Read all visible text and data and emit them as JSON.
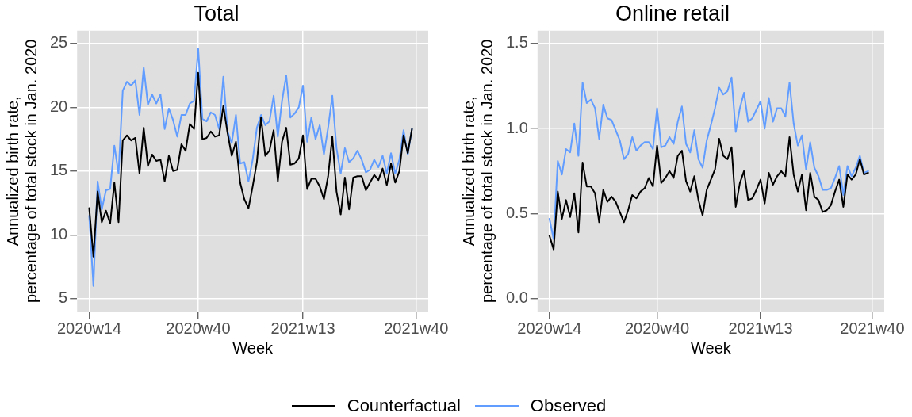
{
  "chart_data": [
    {
      "type": "line",
      "title": "Total",
      "xlabel": "Week",
      "ylabel": "Annualized birth rate,\npercentage of total stock in Jan. 2020",
      "categories": [
        "2020w14",
        null,
        null,
        null,
        null,
        null,
        null,
        null,
        null,
        null,
        null,
        null,
        null,
        null,
        null,
        null,
        null,
        null,
        null,
        null,
        null,
        null,
        null,
        null,
        null,
        null,
        "2020w40",
        null,
        null,
        null,
        null,
        null,
        null,
        null,
        null,
        null,
        null,
        null,
        null,
        null,
        null,
        null,
        null,
        null,
        null,
        null,
        null,
        null,
        null,
        null,
        null,
        "2021w13",
        null,
        null,
        null,
        null,
        null,
        null,
        null,
        null,
        null,
        null,
        null,
        null,
        null,
        null,
        null,
        null,
        null,
        null,
        null,
        null,
        null,
        null,
        null,
        null,
        null,
        null,
        "2021w40"
      ],
      "series": [
        {
          "name": "Counterfactual",
          "color": "#000000",
          "values": [
            12.1,
            8.3,
            13.4,
            11.0,
            11.9,
            10.9,
            14.1,
            11.0,
            17.4,
            17.8,
            17.4,
            17.6,
            14.8,
            18.4,
            15.4,
            16.3,
            15.8,
            15.9,
            14.2,
            16.2,
            15.0,
            15.1,
            17.1,
            16.6,
            18.7,
            18.3,
            22.7,
            17.5,
            17.6,
            18.1,
            17.7,
            17.8,
            20.1,
            18.0,
            16.2,
            17.3,
            14.1,
            12.8,
            12.1,
            13.8,
            15.7,
            19.2,
            16.2,
            16.6,
            18.2,
            14.2,
            17.3,
            18.4,
            15.5,
            15.6,
            16.0,
            17.8,
            13.6,
            14.4,
            14.4,
            13.8,
            12.8,
            14.6,
            17.7,
            13.4,
            11.6,
            14.5,
            12.0,
            14.5,
            14.6,
            14.6,
            13.5,
            14.1,
            14.7,
            14.3,
            15.2,
            13.9,
            15.6,
            14.1,
            15.0,
            17.8,
            16.4,
            18.3,
            null
          ]
        },
        {
          "name": "Observed",
          "color": "#619cff",
          "values": [
            11.5,
            6.0,
            14.2,
            12.0,
            13.5,
            13.6,
            17.0,
            14.8,
            21.3,
            22.0,
            21.7,
            22.1,
            19.4,
            23.1,
            20.2,
            21.0,
            20.3,
            21.0,
            18.3,
            19.9,
            19.0,
            17.7,
            19.4,
            19.4,
            20.3,
            20.5,
            24.6,
            19.1,
            18.9,
            19.6,
            19.4,
            18.3,
            22.4,
            18.1,
            17.2,
            19.4,
            15.6,
            15.7,
            14.2,
            15.9,
            18.4,
            19.4,
            18.6,
            18.9,
            20.9,
            17.7,
            20.5,
            22.5,
            19.2,
            19.5,
            20.0,
            21.7,
            17.3,
            19.2,
            17.5,
            18.6,
            16.3,
            18.4,
            20.9,
            16.8,
            14.8,
            16.8,
            15.7,
            16.0,
            16.6,
            15.9,
            14.9,
            15.1,
            15.9,
            15.3,
            16.2,
            14.8,
            16.4,
            14.8,
            15.9,
            18.2,
            16.3,
            18.3,
            null
          ]
        }
      ],
      "ylim": [
        4,
        26
      ],
      "yticks": [
        5,
        10,
        15,
        20,
        25
      ],
      "grid": true,
      "legend": "bottom"
    },
    {
      "type": "line",
      "title": "Online retail",
      "xlabel": "Week",
      "ylabel": "Annualized birth rate,\npercentage of total stock in Jan. 2020",
      "categories": [
        "2020w14",
        null,
        null,
        null,
        null,
        null,
        null,
        null,
        null,
        null,
        null,
        null,
        null,
        null,
        null,
        null,
        null,
        null,
        null,
        null,
        null,
        null,
        null,
        null,
        null,
        null,
        "2020w40",
        null,
        null,
        null,
        null,
        null,
        null,
        null,
        null,
        null,
        null,
        null,
        null,
        null,
        null,
        null,
        null,
        null,
        null,
        null,
        null,
        null,
        null,
        null,
        null,
        "2021w13",
        null,
        null,
        null,
        null,
        null,
        null,
        null,
        null,
        null,
        null,
        null,
        null,
        null,
        null,
        null,
        null,
        null,
        null,
        null,
        null,
        null,
        null,
        null,
        null,
        null,
        null,
        "2021w40"
      ],
      "series": [
        {
          "color": "#000000",
          "values": [
            0.37,
            0.29,
            0.63,
            0.47,
            0.58,
            0.48,
            0.62,
            0.39,
            0.8,
            0.66,
            0.66,
            0.62,
            0.45,
            0.64,
            0.57,
            0.6,
            0.57,
            0.51,
            0.45,
            0.52,
            0.61,
            0.59,
            0.63,
            0.65,
            0.71,
            0.66,
            0.9,
            0.68,
            0.71,
            0.75,
            0.71,
            0.84,
            0.87,
            0.69,
            0.63,
            0.72,
            0.58,
            0.49,
            0.64,
            0.7,
            0.76,
            0.94,
            0.84,
            0.82,
            0.89,
            0.54,
            0.68,
            0.75,
            0.58,
            0.59,
            0.64,
            0.7,
            0.56,
            0.74,
            0.67,
            0.72,
            0.75,
            0.72,
            0.95,
            0.73,
            0.63,
            0.73,
            0.52,
            0.74,
            0.6,
            0.58,
            0.51,
            0.52,
            0.55,
            0.63,
            0.7,
            0.54,
            0.73,
            0.7,
            0.73,
            0.82,
            0.73,
            0.74,
            null
          ]
        },
        {
          "color": "#619cff",
          "values": [
            0.47,
            0.35,
            0.81,
            0.73,
            0.88,
            0.86,
            1.03,
            0.84,
            1.27,
            1.15,
            1.17,
            1.12,
            0.94,
            1.14,
            1.06,
            1.05,
            0.99,
            0.93,
            0.82,
            0.85,
            0.95,
            0.87,
            0.9,
            0.92,
            0.92,
            0.88,
            1.12,
            0.89,
            0.9,
            0.95,
            0.91,
            1.04,
            1.13,
            0.91,
            0.86,
            0.99,
            0.82,
            0.77,
            0.93,
            1.02,
            1.12,
            1.24,
            1.2,
            1.22,
            1.3,
            0.98,
            1.12,
            1.21,
            1.04,
            1.06,
            1.11,
            1.16,
            1.0,
            1.18,
            1.04,
            1.12,
            1.12,
            1.07,
            1.27,
            1.03,
            0.9,
            0.96,
            0.76,
            0.92,
            0.77,
            0.72,
            0.64,
            0.64,
            0.65,
            0.71,
            0.78,
            0.61,
            0.78,
            0.72,
            0.77,
            0.84,
            0.74,
            0.75,
            null
          ]
        }
      ],
      "ylim": [
        -0.075,
        1.575
      ],
      "yticks": [
        {
          "value": 0,
          "label": "0.0"
        },
        0.5,
        {
          "value": 1,
          "label": "1.0"
        },
        1.5
      ],
      "grid": true
    }
  ]
}
